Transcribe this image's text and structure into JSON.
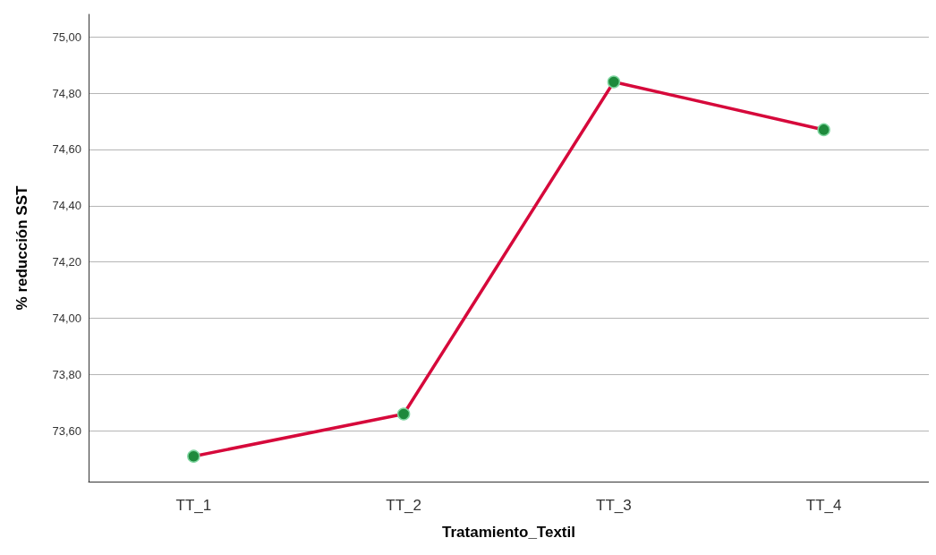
{
  "chart_data": {
    "type": "line",
    "xlabel": "Tratamiento_Textil",
    "ylabel": "% reducción SST",
    "categories": [
      "TT_1",
      "TT_2",
      "TT_3",
      "TT_4"
    ],
    "series": [
      {
        "color": "#d6093b",
        "values": [
          73.51,
          73.66,
          74.84,
          74.67
        ]
      }
    ],
    "ylim": [
      73.42,
      75.08
    ],
    "yticks": [
      {
        "value": 73.6,
        "label": "73,60"
      },
      {
        "value": 73.8,
        "label": "73,80"
      },
      {
        "value": 74.0,
        "label": "74,00"
      },
      {
        "value": 74.2,
        "label": "74,20"
      },
      {
        "value": 74.4,
        "label": "74,40"
      },
      {
        "value": 74.6,
        "label": "74,60"
      },
      {
        "value": 74.8,
        "label": "74,80"
      },
      {
        "value": 75.0,
        "label": "75,00"
      }
    ],
    "grid": "y",
    "marker": "circle",
    "line_style": "solid"
  }
}
